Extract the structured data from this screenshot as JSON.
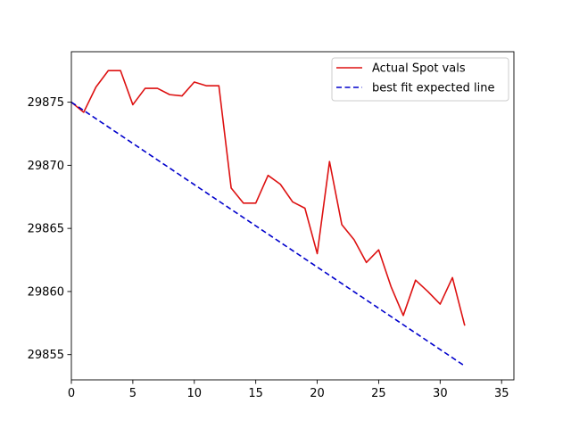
{
  "chart_data": {
    "type": "line",
    "title": "",
    "xlabel": "",
    "ylabel": "",
    "xlim": [
      0,
      36
    ],
    "ylim": [
      29853,
      29879
    ],
    "x_ticks": [
      0,
      5,
      10,
      15,
      20,
      25,
      30,
      35
    ],
    "y_ticks": [
      29855,
      29860,
      29865,
      29870,
      29875
    ],
    "grid": false,
    "legend_position": "upper right",
    "series": [
      {
        "name": "Actual Spot vals",
        "color": "#dd1111",
        "style": "solid",
        "x": [
          0,
          1,
          2,
          3,
          4,
          5,
          6,
          7,
          8,
          9,
          10,
          11,
          12,
          13,
          14,
          15,
          16,
          17,
          18,
          19,
          20,
          21,
          22,
          23,
          24,
          25,
          26,
          27,
          28,
          29,
          30,
          31,
          32
        ],
        "y": [
          29875.0,
          29874.2,
          29876.2,
          29877.5,
          29877.5,
          29874.8,
          29876.1,
          29876.1,
          29875.6,
          29875.5,
          29876.6,
          29876.3,
          29876.3,
          29868.2,
          29867.0,
          29867.0,
          29869.2,
          29868.5,
          29867.1,
          29866.6,
          29863.0,
          29870.3,
          29865.3,
          29864.1,
          29862.3,
          29863.3,
          29860.4,
          29858.1,
          29860.9,
          29860.0,
          29859.0,
          29861.1,
          29857.3
        ]
      },
      {
        "name": "best fit expected line",
        "color": "#0000cc",
        "style": "dashed",
        "x": [
          0,
          32
        ],
        "y": [
          29875.0,
          29854.1
        ]
      }
    ]
  }
}
